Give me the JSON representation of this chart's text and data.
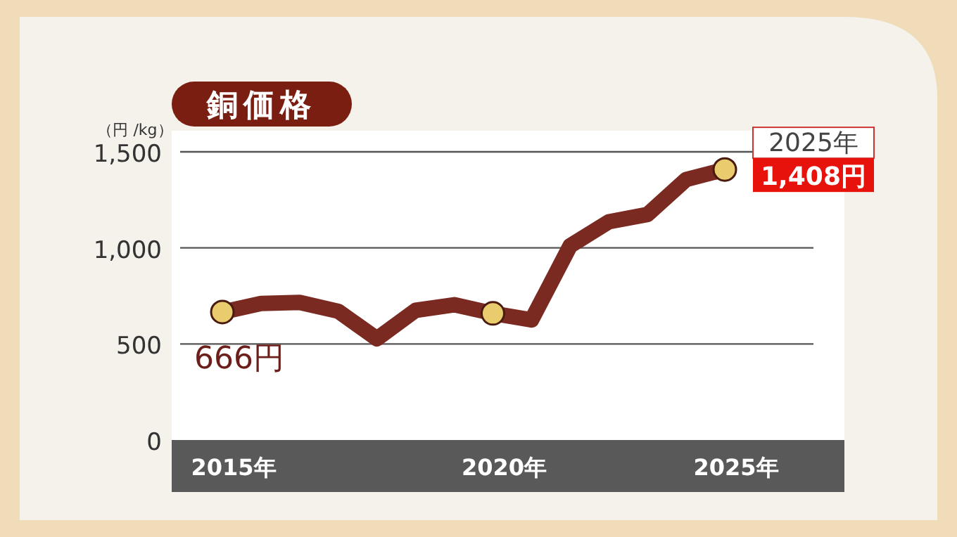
{
  "chart_data": {
    "type": "line",
    "title": "銅価格",
    "ylabel": "（円 /kg）",
    "categories": [
      "2015年",
      null,
      null,
      null,
      null,
      null,
      null,
      "2020年",
      null,
      null,
      null,
      null,
      null,
      "2025年"
    ],
    "series": [
      {
        "type": "line",
        "color": "#7b2a22",
        "values": [
          666,
          711,
          716,
          670,
          527,
          675,
          704,
          659,
          625,
          1011,
          1136,
          1174,
          1356,
          1408
        ]
      },
      {
        "type": "scatter",
        "color": "#e8cc6e",
        "values": [
          666,
          null,
          null,
          null,
          null,
          null,
          null,
          659,
          null,
          null,
          null,
          null,
          null,
          1408
        ]
      }
    ],
    "ylim": [
      0,
      1500
    ],
    "yticks": [
      0,
      {
        "value": 500,
        "label": "500"
      },
      {
        "value": 1000,
        "label": "1,000"
      },
      {
        "value": 1500,
        "label": "1,500"
      }
    ],
    "grid": "y",
    "annotations": [
      {
        "text": "666円",
        "x": "2015年",
        "y": 666
      },
      {
        "text": "2025年",
        "x": "2025年",
        "y": 1408
      },
      {
        "text": "1,408円",
        "x": "2025年",
        "y": 1408
      }
    ]
  }
}
